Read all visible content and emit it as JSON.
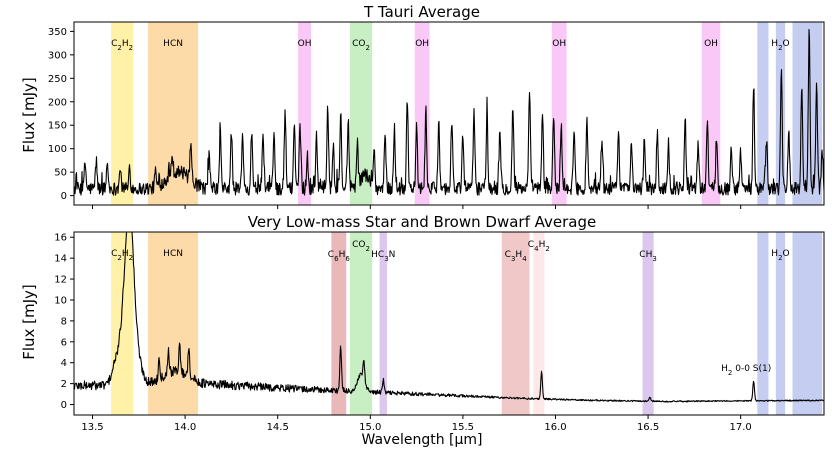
{
  "chart_data": [
    {
      "type": "line",
      "title": "T Tauri Average",
      "xlabel": "",
      "ylabel": "Flux [mJy]",
      "xlim": [
        13.4,
        17.45
      ],
      "ylim": [
        -20,
        370
      ],
      "yticks": [
        0,
        50,
        100,
        150,
        200,
        250,
        300,
        350
      ],
      "xticks": [
        13.5,
        14.0,
        14.5,
        15.0,
        15.5,
        16.0,
        16.5,
        17.0
      ],
      "bands": [
        {
          "label": "C2H2",
          "x0": 13.6,
          "x1": 13.72,
          "color": "#fff2a8"
        },
        {
          "label": "HCN",
          "x0": 13.8,
          "x1": 14.07,
          "color": "#fddba8"
        },
        {
          "label": "OH",
          "x0": 14.61,
          "x1": 14.68,
          "color": "#f9c8f6"
        },
        {
          "label": "CO2",
          "x0": 14.89,
          "x1": 15.01,
          "color": "#c8efc4"
        },
        {
          "label": "OH",
          "x0": 15.24,
          "x1": 15.32,
          "color": "#f9c8f6"
        },
        {
          "label": "OH",
          "x0": 15.98,
          "x1": 16.06,
          "color": "#f9c8f6"
        },
        {
          "label": "OH",
          "x0": 16.79,
          "x1": 16.89,
          "color": "#f9c8f6"
        },
        {
          "label": "",
          "x0": 17.09,
          "x1": 17.15,
          "color": "#c5cdf1"
        },
        {
          "label": "H2O",
          "x0": 17.19,
          "x1": 17.24,
          "color": "#c5cdf1"
        },
        {
          "label": "",
          "x0": 17.28,
          "x1": 17.44,
          "color": "#c5cdf1"
        }
      ],
      "baseline": 15,
      "noise": 14,
      "broad": [
        {
          "x": 13.98,
          "w": 0.05,
          "a": 30
        },
        {
          "x": 13.92,
          "w": 0.04,
          "a": 15
        },
        {
          "x": 14.97,
          "w": 0.025,
          "a": 30
        }
      ],
      "peaks": [
        {
          "x": 13.46,
          "a": 55
        },
        {
          "x": 13.52,
          "a": 60
        },
        {
          "x": 13.58,
          "a": 55
        },
        {
          "x": 13.65,
          "a": 40
        },
        {
          "x": 13.7,
          "a": 45
        },
        {
          "x": 13.84,
          "a": 35
        },
        {
          "x": 13.93,
          "a": 40
        },
        {
          "x": 14.03,
          "a": 70
        },
        {
          "x": 14.13,
          "a": 70
        },
        {
          "x": 14.19,
          "a": 115
        },
        {
          "x": 14.25,
          "a": 120
        },
        {
          "x": 14.31,
          "a": 110
        },
        {
          "x": 14.36,
          "a": 125
        },
        {
          "x": 14.42,
          "a": 110
        },
        {
          "x": 14.48,
          "a": 120
        },
        {
          "x": 14.54,
          "a": 165
        },
        {
          "x": 14.59,
          "a": 145
        },
        {
          "x": 14.62,
          "a": 135
        },
        {
          "x": 14.66,
          "a": 70
        },
        {
          "x": 14.71,
          "a": 110
        },
        {
          "x": 14.77,
          "a": 175
        },
        {
          "x": 14.8,
          "a": 90
        },
        {
          "x": 14.84,
          "a": 145
        },
        {
          "x": 14.88,
          "a": 130
        },
        {
          "x": 14.93,
          "a": 90
        },
        {
          "x": 15.02,
          "a": 80
        },
        {
          "x": 15.08,
          "a": 115
        },
        {
          "x": 15.13,
          "a": 130
        },
        {
          "x": 15.2,
          "a": 190
        },
        {
          "x": 15.25,
          "a": 130
        },
        {
          "x": 15.3,
          "a": 160
        },
        {
          "x": 15.37,
          "a": 145
        },
        {
          "x": 15.44,
          "a": 150
        },
        {
          "x": 15.5,
          "a": 110
        },
        {
          "x": 15.56,
          "a": 165
        },
        {
          "x": 15.63,
          "a": 155
        },
        {
          "x": 15.7,
          "a": 120
        },
        {
          "x": 15.77,
          "a": 175
        },
        {
          "x": 15.86,
          "a": 210
        },
        {
          "x": 15.93,
          "a": 155
        },
        {
          "x": 15.99,
          "a": 160
        },
        {
          "x": 16.03,
          "a": 120
        },
        {
          "x": 16.1,
          "a": 130
        },
        {
          "x": 16.17,
          "a": 140
        },
        {
          "x": 16.25,
          "a": 100
        },
        {
          "x": 16.34,
          "a": 130
        },
        {
          "x": 16.41,
          "a": 110
        },
        {
          "x": 16.48,
          "a": 115
        },
        {
          "x": 16.55,
          "a": 120
        },
        {
          "x": 16.61,
          "a": 100
        },
        {
          "x": 16.7,
          "a": 145
        },
        {
          "x": 16.77,
          "a": 90
        },
        {
          "x": 16.82,
          "a": 140
        },
        {
          "x": 16.87,
          "a": 115
        },
        {
          "x": 16.95,
          "a": 85
        },
        {
          "x": 17.0,
          "a": 75
        },
        {
          "x": 17.07,
          "a": 225
        },
        {
          "x": 17.14,
          "a": 105
        },
        {
          "x": 17.22,
          "a": 260
        },
        {
          "x": 17.26,
          "a": 110
        },
        {
          "x": 17.33,
          "a": 225
        },
        {
          "x": 17.37,
          "a": 345
        },
        {
          "x": 17.41,
          "a": 225
        },
        {
          "x": 17.44,
          "a": 80
        }
      ]
    },
    {
      "type": "line",
      "title": "Very Low-mass Star and Brown Dwarf Average",
      "xlabel": "Wavelength [μm]",
      "ylabel": "Flux [mJy]",
      "xlim": [
        13.4,
        17.45
      ],
      "ylim": [
        -1,
        16.5
      ],
      "yticks": [
        0,
        2,
        4,
        6,
        8,
        10,
        12,
        14,
        16
      ],
      "xticks": [
        13.5,
        14.0,
        14.5,
        15.0,
        15.5,
        16.0,
        16.5,
        17.0
      ],
      "bands": [
        {
          "label": "C2H2",
          "x0": 13.6,
          "x1": 13.72,
          "color": "#fff2a8"
        },
        {
          "label": "HCN",
          "x0": 13.8,
          "x1": 14.07,
          "color": "#fddba8"
        },
        {
          "label": "C6H6",
          "x0": 14.79,
          "x1": 14.87,
          "color": "#e8b9b8"
        },
        {
          "label": "CO2",
          "x0": 14.89,
          "x1": 15.01,
          "color": "#c8efc4"
        },
        {
          "label": "HC3N",
          "x0": 15.05,
          "x1": 15.09,
          "color": "#dcc8ef"
        },
        {
          "label": "C3H4",
          "x0": 15.71,
          "x1": 15.86,
          "color": "#f0c8c8"
        },
        {
          "label": "C4H2",
          "x0": 15.88,
          "x1": 15.94,
          "color": "#fde7e7"
        },
        {
          "label": "CH3",
          "x0": 16.47,
          "x1": 16.53,
          "color": "#dcc8ef"
        },
        {
          "label": "",
          "x0": 17.09,
          "x1": 17.15,
          "color": "#c5cdf1"
        },
        {
          "label": "H2O",
          "x0": 17.19,
          "x1": 17.24,
          "color": "#c5cdf1"
        },
        {
          "label": "",
          "x0": 17.28,
          "x1": 17.44,
          "color": "#c5cdf1"
        }
      ],
      "baseline_points": [
        [
          13.4,
          1.8
        ],
        [
          13.8,
          1.9
        ],
        [
          14.2,
          1.9
        ],
        [
          14.6,
          1.5
        ],
        [
          15.0,
          1.2
        ],
        [
          15.4,
          0.9
        ],
        [
          15.8,
          0.6
        ],
        [
          16.2,
          0.4
        ],
        [
          16.6,
          0.3
        ],
        [
          17.0,
          0.35
        ],
        [
          17.45,
          0.4
        ]
      ],
      "noise_points": [
        [
          13.4,
          0.45
        ],
        [
          14.1,
          0.45
        ],
        [
          14.6,
          0.35
        ],
        [
          15.1,
          0.2
        ],
        [
          15.6,
          0.1
        ],
        [
          16.0,
          0.07
        ],
        [
          17.45,
          0.05
        ]
      ],
      "broad": [
        {
          "x": 13.7,
          "w": 0.022,
          "a": 11.5
        },
        {
          "x": 13.675,
          "w": 0.03,
          "a": 5.5
        },
        {
          "x": 13.73,
          "w": 0.03,
          "a": 3.0
        },
        {
          "x": 13.62,
          "w": 0.02,
          "a": 1.2
        },
        {
          "x": 13.95,
          "w": 0.07,
          "a": 1.3
        },
        {
          "x": 14.95,
          "w": 0.018,
          "a": 1.6
        }
      ],
      "peaks": [
        {
          "x": 13.86,
          "a": 2.0
        },
        {
          "x": 13.91,
          "a": 2.2
        },
        {
          "x": 13.97,
          "a": 2.6
        },
        {
          "x": 14.02,
          "a": 2.9
        },
        {
          "x": 14.84,
          "a": 4.2
        },
        {
          "x": 14.965,
          "a": 1.8
        },
        {
          "x": 15.07,
          "a": 1.2
        },
        {
          "x": 15.925,
          "a": 2.6
        },
        {
          "x": 16.51,
          "a": 0.4
        },
        {
          "x": 17.07,
          "a": 1.9
        }
      ],
      "annotations": [
        {
          "text": "H2 0-0 S(1)",
          "x": 17.03,
          "y": 3.2
        }
      ]
    }
  ]
}
